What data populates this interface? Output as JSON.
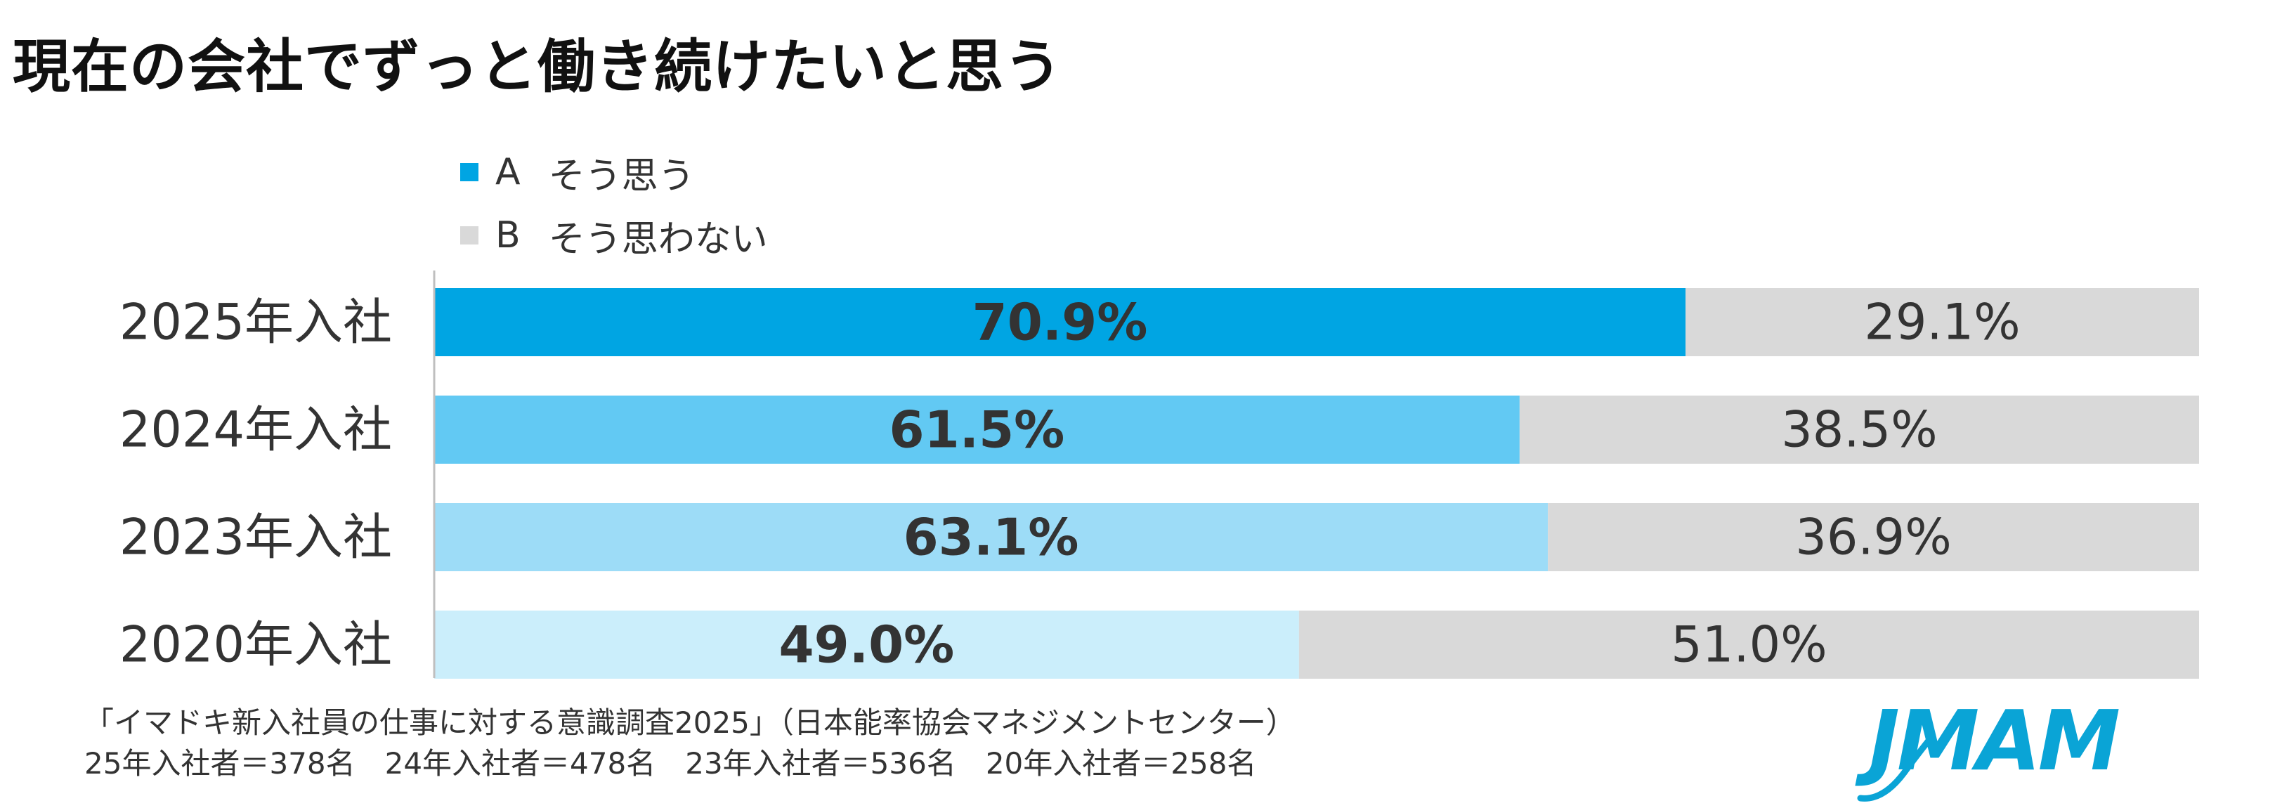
{
  "chart_data": {
    "type": "bar",
    "orientation": "horizontal-stacked-100",
    "title": "現在の会社でずっと働き続けたいと思う",
    "categories": [
      "2025年入社",
      "2024年入社",
      "2023年入社",
      "2020年入社"
    ],
    "series": [
      {
        "name": "A",
        "label": "そう思う",
        "values": [
          70.9,
          61.5,
          63.1,
          49.0
        ],
        "value_labels": [
          "70.9%",
          "61.5%",
          "63.1%",
          "49.0%"
        ],
        "colors": [
          "#00a5e3",
          "#62c9f3",
          "#9ddcf7",
          "#cbeefb"
        ]
      },
      {
        "name": "B",
        "label": "そう思わない",
        "values": [
          29.1,
          38.5,
          36.9,
          51.0
        ],
        "value_labels": [
          "29.1%",
          "38.5%",
          "36.9%",
          "51.0%"
        ],
        "colors": [
          "#d9d9d9",
          "#d9d9d9",
          "#d9d9d9",
          "#d9d9d9"
        ]
      }
    ],
    "xlim": [
      0,
      100
    ],
    "legend": {
      "placement": "top-left",
      "items": [
        {
          "key": "A",
          "text": "そう思う",
          "color": "#00a5e3"
        },
        {
          "key": "B",
          "text": "そう思わない",
          "color": "#d9d9d9"
        }
      ]
    }
  },
  "source": {
    "line1": "「イマドキ新入社員の仕事に対する意識調査2025」（日本能率協会マネジメントセンター）",
    "line2": "25年入社者＝378名　24年入社者＝478名　23年入社者＝536名　20年入社者＝258名"
  },
  "logo": {
    "text": "JMAM",
    "color": "#0aa4d6"
  },
  "colors": {
    "axis": "#bfbfbf",
    "label_text": "#333333",
    "bold_value_text": "#333333"
  }
}
